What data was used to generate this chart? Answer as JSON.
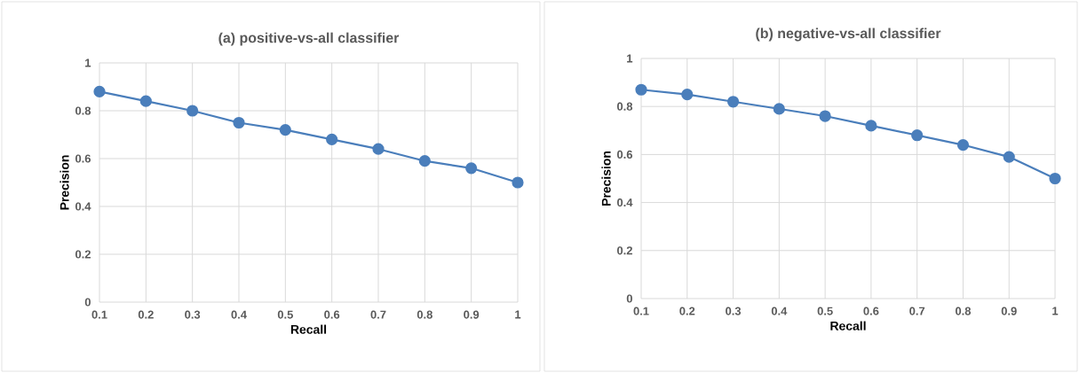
{
  "chart_data": [
    {
      "type": "line",
      "title": "(a) positive-vs-all classifier",
      "xlabel": "Recall",
      "ylabel": "Precision",
      "x": [
        0.1,
        0.2,
        0.3,
        0.4,
        0.5,
        0.6,
        0.7,
        0.8,
        0.9,
        1
      ],
      "values": [
        0.88,
        0.84,
        0.8,
        0.75,
        0.72,
        0.68,
        0.64,
        0.59,
        0.56,
        0.5
      ],
      "color": "#4a7ebb",
      "marker": "circle",
      "grid": true,
      "xlim": [
        0.1,
        1
      ],
      "ylim": [
        0,
        1
      ],
      "xticks": [
        0.1,
        0.2,
        0.3,
        0.4,
        0.5,
        0.6,
        0.7,
        0.8,
        0.9,
        1
      ],
      "yticks": [
        0,
        0.2,
        0.4,
        0.6,
        0.8,
        1
      ]
    },
    {
      "type": "line",
      "title": "(b) negative-vs-all classifier",
      "xlabel": "Recall",
      "ylabel": "Precision",
      "x": [
        0.1,
        0.2,
        0.3,
        0.4,
        0.5,
        0.6,
        0.7,
        0.8,
        0.9,
        1
      ],
      "values": [
        0.87,
        0.85,
        0.82,
        0.79,
        0.76,
        0.72,
        0.68,
        0.64,
        0.59,
        0.5
      ],
      "color": "#4a7ebb",
      "marker": "circle",
      "grid": true,
      "xlim": [
        0.1,
        1
      ],
      "ylim": [
        0,
        1
      ],
      "xticks": [
        0.1,
        0.2,
        0.3,
        0.4,
        0.5,
        0.6,
        0.7,
        0.8,
        0.9,
        1
      ],
      "yticks": [
        0,
        0.2,
        0.4,
        0.6,
        0.8,
        1
      ]
    }
  ]
}
